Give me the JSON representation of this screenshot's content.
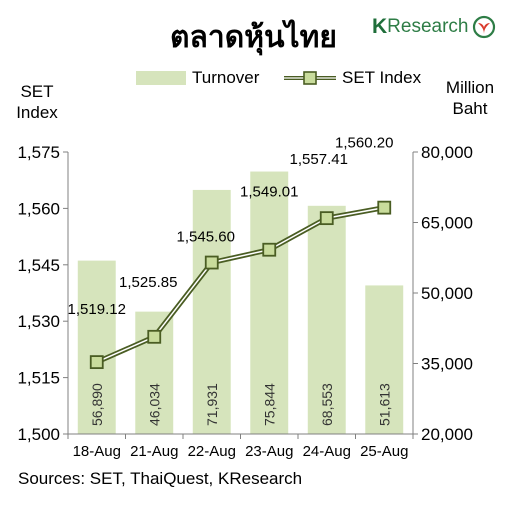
{
  "title": "ตลาดหุ้นไทย",
  "logo": {
    "k": "K",
    "text": "Research"
  },
  "left_axis_title": [
    "SET",
    "Index"
  ],
  "right_axis_title": [
    "Million",
    "Baht"
  ],
  "legend": {
    "bar": "Turnover",
    "line": "SET Index"
  },
  "source": "Sources: SET, ThaiQuest, KResearch",
  "colors": {
    "bar": "#d6e4bc",
    "line": "#4a5d23",
    "marker_fill": "#c9dc9c",
    "logo": "#2e7d46"
  },
  "chart_data": {
    "type": "bar+line",
    "categories": [
      "18-Aug",
      "21-Aug",
      "22-Aug",
      "23-Aug",
      "24-Aug",
      "25-Aug"
    ],
    "series": [
      {
        "name": "Turnover",
        "type": "bar",
        "axis": "right",
        "values": [
          56890,
          46034,
          71931,
          75844,
          68553,
          51613
        ],
        "labels": [
          "56,890",
          "46,034",
          "71,931",
          "75,844",
          "68,553",
          "51,613"
        ]
      },
      {
        "name": "SET Index",
        "type": "line",
        "axis": "left",
        "values": [
          1519.12,
          1525.85,
          1545.6,
          1549.01,
          1557.41,
          1560.2
        ],
        "labels": [
          "1,519.12",
          "1,525.85",
          "1,545.60",
          "1,549.01",
          "1,557.41",
          "1,560.20"
        ]
      }
    ],
    "y_left": {
      "range": [
        1500,
        1575
      ],
      "ticks": [
        1500,
        1515,
        1530,
        1545,
        1560,
        1575
      ],
      "tick_labels": [
        "1,500",
        "1,515",
        "1,530",
        "1,545",
        "1,560",
        "1,575"
      ]
    },
    "y_right": {
      "range": [
        20000,
        80000
      ],
      "ticks": [
        20000,
        35000,
        50000,
        65000,
        80000
      ],
      "tick_labels": [
        "20,000",
        "35,000",
        "50,000",
        "65,000",
        "80,000"
      ]
    },
    "grid": false,
    "legend_position": "top"
  }
}
